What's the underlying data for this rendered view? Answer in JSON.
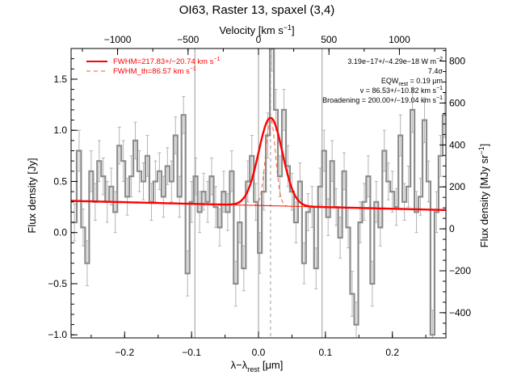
{
  "chart_data": {
    "type": "line",
    "title": "OI63, Raster 13, spaxel (3,4)",
    "xlabel": "λ-λ_rest [μm]",
    "ylabel": "Flux density [Jy]",
    "x2label": "Velocity [km s^-1]",
    "y2label": "Flux density [MJy sr^-1]",
    "xlim": [
      -0.28,
      0.28
    ],
    "ylim": [
      -1.03,
      1.8
    ],
    "x2lim": [
      -1330,
      1330
    ],
    "y2lim": [
      -520,
      860
    ],
    "xticks": [
      -0.2,
      -0.1,
      0.0,
      0.1,
      0.2
    ],
    "xtick_labels": [
      "−0.2",
      "−0.1",
      "0.0",
      "0.1",
      "0.2"
    ],
    "yticks": [
      -1.0,
      -0.5,
      0.0,
      0.5,
      1.0,
      1.5
    ],
    "ytick_labels": [
      "−1.0",
      "−0.5",
      "0.0",
      "0.5",
      "1.0",
      "1.5"
    ],
    "x2ticks": [
      -1000,
      -500,
      0,
      500,
      1000
    ],
    "x2tick_labels": [
      "−1000",
      "−500",
      "0",
      "500",
      "1000"
    ],
    "y2ticks": [
      -400,
      -200,
      0,
      200,
      400,
      600,
      800
    ],
    "y2tick_labels": [
      "−400",
      "−200",
      "0",
      "200",
      "400",
      "600",
      "800"
    ],
    "vlines": [
      -0.095,
      0.0,
      0.095
    ],
    "dashed_vline": 0.018,
    "legend": [
      {
        "label": "FWHM=217.83+/−20.74 km s^-1",
        "style": "solid"
      },
      {
        "label": "FWHM_th=86.57 km s^-1",
        "style": "dashed"
      }
    ],
    "annotations": [
      "3.19e−17+/−4.29e−18 W m^-2",
      "7.4σ",
      "EQW_rest = 0.19 μm",
      "v = 86.53+/−10.82 km s^-1",
      "Broadening = 200.00+/−19.04 km s^-1"
    ],
    "series": [
      {
        "kind": "spectrum",
        "color": "#8c8c8c",
        "x": [
          -0.275,
          -0.268,
          -0.262,
          -0.256,
          -0.25,
          -0.244,
          -0.238,
          -0.232,
          -0.226,
          -0.22,
          -0.214,
          -0.208,
          -0.202,
          -0.196,
          -0.19,
          -0.184,
          -0.178,
          -0.172,
          -0.166,
          -0.16,
          -0.154,
          -0.148,
          -0.142,
          -0.136,
          -0.13,
          -0.124,
          -0.118,
          -0.112,
          -0.106,
          -0.1,
          -0.094,
          -0.088,
          -0.082,
          -0.076,
          -0.07,
          -0.064,
          -0.058,
          -0.052,
          -0.046,
          -0.04,
          -0.034,
          -0.028,
          -0.022,
          -0.016,
          -0.01,
          -0.004,
          0.002,
          0.008,
          0.014,
          0.02,
          0.026,
          0.032,
          0.038,
          0.044,
          0.05,
          0.056,
          0.062,
          0.068,
          0.074,
          0.08,
          0.086,
          0.092,
          0.098,
          0.104,
          0.11,
          0.116,
          0.122,
          0.128,
          0.134,
          0.14,
          0.146,
          0.152,
          0.158,
          0.164,
          0.17,
          0.176,
          0.182,
          0.188,
          0.194,
          0.2,
          0.206,
          0.212,
          0.218,
          0.224,
          0.23,
          0.236,
          0.242,
          0.248,
          0.254,
          0.26,
          0.266,
          0.272,
          0.278
        ],
        "y": [
          0.1,
          0.8,
          0.05,
          -0.3,
          0.6,
          0.3,
          0.7,
          0.55,
          0.3,
          0.45,
          0.2,
          0.85,
          0.7,
          0.35,
          0.55,
          0.9,
          0.6,
          0.5,
          0.75,
          0.3,
          0.5,
          0.6,
          0.35,
          0.65,
          0.5,
          0.95,
          0.35,
          1.15,
          -0.4,
          0.3,
          0.55,
          0.2,
          0.4,
          0.3,
          0.55,
          0.25,
          0.05,
          0.4,
          0.2,
          0.6,
          -0.5,
          0.1,
          -0.35,
          0.5,
          0.75,
          0.3,
          -0.2,
          0.4,
          0.95,
          1.8,
          1.2,
          0.55,
          1.2,
          0.65,
          0.4,
          0.1,
          0.5,
          -0.3,
          0.2,
          0.25,
          -0.35,
          0.45,
          0.8,
          0.15,
          0.7,
          0.25,
          -0.05,
          0.6,
          0.05,
          -0.6,
          -0.9,
          0.1,
          0.3,
          0.55,
          -0.5,
          0.3,
          0.05,
          0.8,
          0.5,
          0.4,
          0.25,
          0.95,
          0.3,
          0.45,
          1.2,
          0.2,
          0.35,
          1.1,
          0.5,
          -1.0,
          0.2,
          0.75,
          1.15
        ],
        "err": [
          0.18,
          0.2,
          0.18,
          0.22,
          0.2,
          0.18,
          0.2,
          0.18,
          0.2,
          0.18,
          0.2,
          0.18,
          0.2,
          0.18,
          0.2,
          0.18,
          0.2,
          0.18,
          0.2,
          0.18,
          0.2,
          0.18,
          0.2,
          0.18,
          0.2,
          0.18,
          0.2,
          0.18,
          0.22,
          0.2,
          0.18,
          0.2,
          0.18,
          0.2,
          0.18,
          0.2,
          0.18,
          0.2,
          0.18,
          0.2,
          0.22,
          0.2,
          0.22,
          0.2,
          0.2,
          0.18,
          0.2,
          0.18,
          0.22,
          0.22,
          0.2,
          0.2,
          0.2,
          0.2,
          0.18,
          0.2,
          0.18,
          0.2,
          0.18,
          0.2,
          0.2,
          0.18,
          0.2,
          0.18,
          0.2,
          0.18,
          0.2,
          0.18,
          0.2,
          0.22,
          0.22,
          0.2,
          0.18,
          0.2,
          0.22,
          0.2,
          0.18,
          0.2,
          0.18,
          0.2,
          0.18,
          0.2,
          0.18,
          0.2,
          0.22,
          0.2,
          0.18,
          0.22,
          0.2,
          0.24,
          0.2,
          0.2,
          0.22
        ]
      },
      {
        "kind": "gaussian_fit",
        "color": "#ff0000",
        "baseline": {
          "x": [
            -0.28,
            0.28
          ],
          "y": [
            0.31,
            0.22
          ]
        },
        "amplitude": 0.86,
        "center": 0.018,
        "fwhm": 0.042
      },
      {
        "kind": "thermal_profile",
        "color": "#ff5a1f",
        "amplitude": 0.86,
        "center": 0.018,
        "fwhm": 0.017
      }
    ]
  }
}
